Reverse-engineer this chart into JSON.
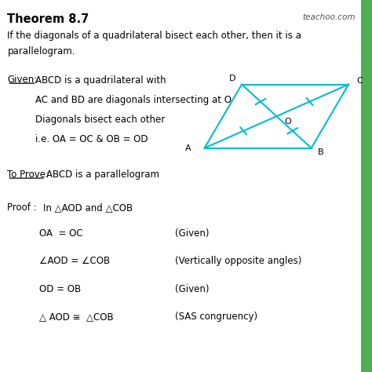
{
  "bg_color": "#ffffff",
  "right_bar_color": "#4CAF50",
  "title": "Theorem 8.7",
  "watermark": "teachoo.com",
  "theorem_line1": "If the diagonals of a quadrilateral bisect each other, then it is a",
  "theorem_line2": "parallelogram.",
  "given_label": "Given:",
  "given_lines": [
    "ABCD is a quadrilateral with",
    "AC and BD are diagonals intersecting at O",
    "Diagonals bisect each other",
    "i.e. OA = OC & OB = OD"
  ],
  "toprove_label": "To Prove:",
  "toprove_text": "ABCD is a parallelogram",
  "proof_label": "Proof :",
  "proof_intro": "In △AOD and △COB",
  "proof_rows": [
    [
      "OA  = OC",
      "(Given)"
    ],
    [
      "∠AOD = ∠COB",
      "(Vertically opposite angles)"
    ],
    [
      "OD = OB",
      "(Given)"
    ],
    [
      "△ AOD ≅  △COB",
      "(SAS congruency)"
    ]
  ],
  "quad_color": "#00BCD4"
}
